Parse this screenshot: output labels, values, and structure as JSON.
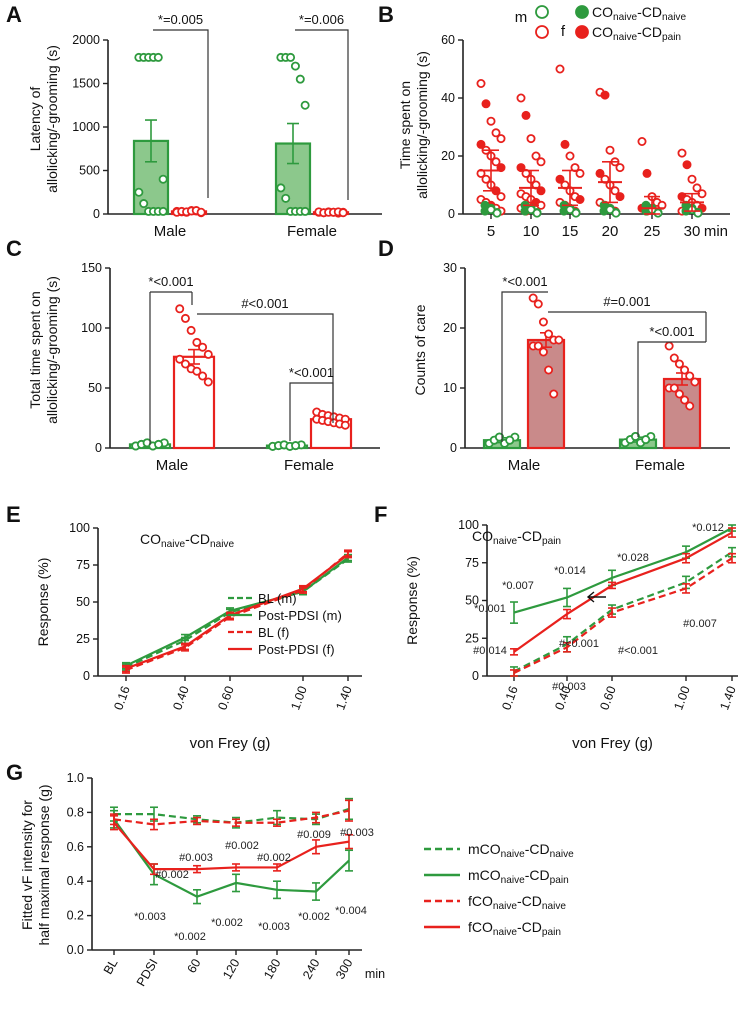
{
  "chart_data": [
    {
      "panel": "A",
      "type": "bar",
      "ylabel": "Latency of allolicking/-grooming (s)",
      "ylim": [
        0,
        2000
      ],
      "yticks": [
        "0",
        "500",
        "1000",
        "1500",
        "2000"
      ],
      "categories": [
        "Male",
        "Female"
      ],
      "series": [
        {
          "name": "CO naive-CD naive",
          "color": "#3a9a3a",
          "values": [
            840,
            810
          ],
          "sem": [
            240,
            230
          ],
          "points": [
            [
              1800,
              1800,
              1800,
              1800,
              1800,
              400,
              250,
              120,
              30,
              30,
              30,
              30
            ],
            [
              1800,
              1800,
              1800,
              1700,
              1550,
              1250,
              300,
              180,
              30,
              30,
              30,
              30
            ]
          ]
        },
        {
          "name": "CO naive-CD pain",
          "color": "#e8211d",
          "values": [
            30,
            20
          ],
          "sem": [
            8,
            6
          ],
          "points": [
            [
              30,
              25,
              20,
              40,
              35,
              15,
              20,
              30,
              25,
              35,
              40,
              20
            ],
            [
              20,
              15,
              25,
              20,
              10,
              20,
              25,
              15,
              20,
              20,
              25,
              15
            ]
          ]
        }
      ],
      "annotations": [
        "*=0.005",
        "*=0.006"
      ]
    },
    {
      "panel": "B",
      "type": "scatter",
      "ylabel": "Time spent on allolicking/-grooming (s)",
      "ylim": [
        0,
        60
      ],
      "yticks": [
        "0",
        "20",
        "40",
        "60"
      ],
      "categories": [
        "5",
        "10",
        "15",
        "20",
        "25",
        "30"
      ],
      "x_unit": "min",
      "means_pain": [
        15,
        9,
        9,
        11,
        2,
        4
      ],
      "sem_pain": [
        7,
        6,
        6,
        7,
        4,
        3
      ],
      "means_naive": [
        0.5,
        0.3,
        0.3,
        0.4,
        0.2,
        0.2
      ],
      "legend": {
        "m": "m",
        "f": "f",
        "naive": "CO",
        "naive_sub1": "naive",
        "naive_mid": "-CD",
        "naive_sub2": "naive",
        "pain": "CO",
        "pain_sub1": "naive",
        "pain_mid": "-CD",
        "pain_sub2": "pain"
      }
    },
    {
      "panel": "C",
      "type": "bar",
      "ylabel": "Total time spent on allolicking/-grooming (s)",
      "ylim": [
        0,
        150
      ],
      "yticks": [
        "0",
        "50",
        "100",
        "150"
      ],
      "categories": [
        "Male",
        "Female"
      ],
      "series": [
        {
          "name": "CO naive-CD naive",
          "color": "#3a9a3a",
          "values": [
            3,
            2
          ],
          "sem": [
            1,
            0.5
          ]
        },
        {
          "name": "CO naive-CD pain",
          "color": "#e8211d",
          "values": [
            76,
            24
          ],
          "sem": [
            6,
            1.5
          ],
          "points": [
            [
              116,
              108,
              98,
              88,
              84,
              78,
              74,
              70,
              66,
              64,
              60,
              55
            ],
            [
              30,
              28,
              27,
              26,
              25,
              24,
              24,
              23,
              22,
              21,
              20,
              19
            ]
          ]
        }
      ],
      "annotations": [
        "*<0.001",
        "#<0.001",
        "*<0.001"
      ]
    },
    {
      "panel": "D",
      "type": "bar",
      "ylabel": "Counts of care",
      "ylim": [
        0,
        30
      ],
      "yticks": [
        "0",
        "10",
        "20",
        "30"
      ],
      "categories": [
        "Male",
        "Female"
      ],
      "series": [
        {
          "name": "CO naive-CD naive",
          "color": "#3a9a3a",
          "values": [
            1.3,
            1.4
          ],
          "sem": [
            0.4,
            0.4
          ]
        },
        {
          "name": "CO naive-CD pain",
          "color": "#e8211d",
          "values": [
            18,
            11.5
          ],
          "sem": [
            1.2,
            1.0
          ],
          "points": [
            [
              25,
              24,
              21,
              19,
              18,
              18,
              17,
              17,
              16,
              13,
              9
            ],
            [
              17,
              15,
              14,
              13,
              12,
              11,
              10,
              10,
              9,
              8,
              7
            ]
          ]
        }
      ],
      "annotations": [
        "*<0.001",
        "#=0.001",
        "*<0.001"
      ]
    },
    {
      "panel": "E",
      "type": "line",
      "title": "CO naive-CD naive",
      "title_main": "CO",
      "title_sub1": "naive",
      "title_mid": "-CD",
      "title_sub2": "naive",
      "xlabel": "von Frey (g)",
      "ylabel": "Response (%)",
      "ylim": [
        0,
        100
      ],
      "yticks": [
        "0",
        "25",
        "50",
        "75",
        "100"
      ],
      "x": [
        0.16,
        0.4,
        0.6,
        1.0,
        1.4
      ],
      "xticks": [
        "0.16",
        "0.40",
        "0.60",
        "1.00",
        "1.40"
      ],
      "series": [
        {
          "name": "BL (m)",
          "color": "#2e9a3e",
          "dashed": true,
          "values": [
            6,
            24,
            43,
            57,
            79
          ]
        },
        {
          "name": "Post-PDSI (m)",
          "color": "#2e9a3e",
          "dashed": false,
          "values": [
            7,
            26,
            44,
            57,
            80
          ]
        },
        {
          "name": "BL (f)",
          "color": "#e8211d",
          "dashed": true,
          "values": [
            4,
            19,
            40,
            58,
            83
          ]
        },
        {
          "name": "Post-PDSI (f)",
          "color": "#e8211d",
          "dashed": false,
          "values": [
            5,
            20,
            41,
            59,
            82
          ]
        }
      ]
    },
    {
      "panel": "F",
      "type": "line",
      "title": "CO naive-CD pain",
      "title_main": "CO",
      "title_sub1": "naive",
      "title_mid": "-CD",
      "title_sub2": "pain",
      "xlabel": "von Frey (g)",
      "ylabel": "Response (%)",
      "ylim": [
        0,
        100
      ],
      "yticks": [
        "0",
        "25",
        "50",
        "75",
        "100"
      ],
      "x": [
        0.16,
        0.4,
        0.6,
        1.0,
        1.4
      ],
      "xticks": [
        "0.16",
        "0.40",
        "0.60",
        "1.00",
        "1.40"
      ],
      "series": [
        {
          "name": "BL (m)",
          "color": "#2e9a3e",
          "dashed": true,
          "values": [
            3,
            21,
            44,
            62,
            82
          ]
        },
        {
          "name": "Post-PDSI (m)",
          "color": "#2e9a3e",
          "dashed": false,
          "values": [
            42,
            52,
            65,
            82,
            98
          ]
        },
        {
          "name": "BL (f)",
          "color": "#e8211d",
          "dashed": true,
          "values": [
            2,
            19,
            42,
            58,
            78
          ]
        },
        {
          "name": "Post-PDSI (f)",
          "color": "#e8211d",
          "dashed": false,
          "values": [
            16,
            41,
            60,
            78,
            95
          ]
        }
      ],
      "annotations": [
        "*0.001",
        "*0.007",
        "*0.014",
        "*0.028",
        "*0.012",
        "#0.014",
        "#0.003",
        "#<0.001",
        "#<0.001",
        "#0.007"
      ]
    },
    {
      "panel": "G",
      "type": "line",
      "ylabel": "Fitted vF intensity for half maximal response (g)",
      "ylim": [
        0,
        1.0
      ],
      "yticks": [
        "0.0",
        "0.2",
        "0.4",
        "0.6",
        "0.8",
        "1.0"
      ],
      "categories": [
        "BL",
        "PDSI",
        "60",
        "120",
        "180",
        "240",
        "300"
      ],
      "x_unit": "min",
      "series": [
        {
          "name": "mCO naive-CD naive",
          "color": "#2e9a3e",
          "dashed": true,
          "values": [
            0.79,
            0.79,
            0.76,
            0.74,
            0.77,
            0.76,
            0.82
          ]
        },
        {
          "name": "mCO naive-CD pain",
          "color": "#2e9a3e",
          "dashed": false,
          "values": [
            0.76,
            0.44,
            0.31,
            0.39,
            0.35,
            0.34,
            0.52
          ]
        },
        {
          "name": "fCO naive-CD naive",
          "color": "#e8211d",
          "dashed": true,
          "values": [
            0.76,
            0.73,
            0.75,
            0.74,
            0.74,
            0.77,
            0.81
          ]
        },
        {
          "name": "fCO naive-CD pain",
          "color": "#e8211d",
          "dashed": false,
          "values": [
            0.74,
            0.47,
            0.47,
            0.48,
            0.48,
            0.6,
            0.63
          ]
        }
      ],
      "legend": [
        {
          "prefix": "mCO",
          "sub1": "naive",
          "mid": "-CD",
          "sub2": "naive"
        },
        {
          "prefix": "mCO",
          "sub1": "naive",
          "mid": "-CD",
          "sub2": "pain"
        },
        {
          "prefix": "fCO",
          "sub1": "naive",
          "mid": "-CD",
          "sub2": "naive"
        },
        {
          "prefix": "fCO",
          "sub1": "naive",
          "mid": "-CD",
          "sub2": "pain"
        }
      ],
      "annotations_red": [
        "#0.002",
        "#0.003",
        "#0.002",
        "#0.002",
        "#0.009",
        "#0.003"
      ],
      "annotations_green": [
        "*0.003",
        "*0.002",
        "*0.002",
        "*0.003",
        "*0.002",
        "*0.004"
      ]
    }
  ]
}
